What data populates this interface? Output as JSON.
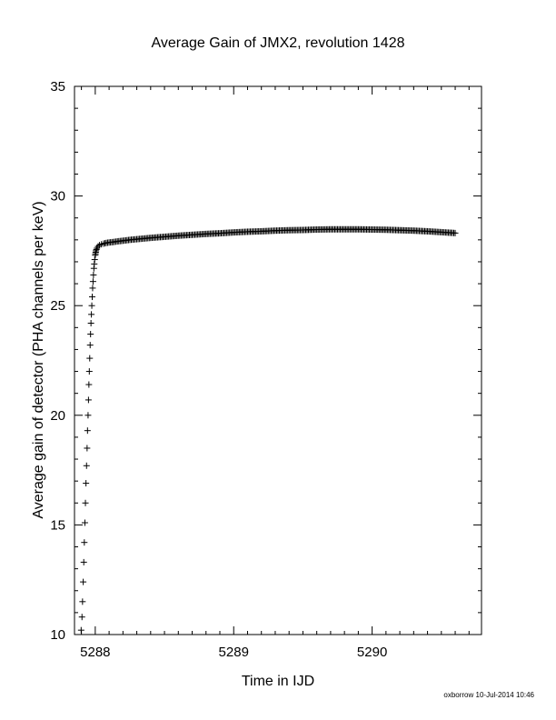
{
  "chart_data": {
    "type": "scatter",
    "title": "Average Gain of JMX2, revolution 1428",
    "xlabel": "Time in IJD",
    "ylabel": "Average gain of detector (PHA channels per keV)",
    "xlim": [
      5287.85,
      5290.79
    ],
    "ylim": [
      10,
      35
    ],
    "xticks": [
      5288,
      5289,
      5290
    ],
    "yticks": [
      10,
      15,
      20,
      25,
      30,
      35
    ],
    "marker": "+",
    "series": [
      {
        "x": [
          5287.898,
          5287.904,
          5287.908,
          5287.913,
          5287.917,
          5287.921,
          5287.925,
          5287.929,
          5287.933,
          5287.937,
          5287.941,
          5287.944,
          5287.948,
          5287.951,
          5287.954,
          5287.957,
          5287.96,
          5287.963,
          5287.966,
          5287.969,
          5287.972,
          5287.975,
          5287.978,
          5287.981,
          5287.984,
          5287.987,
          5287.99,
          5287.993,
          5287.996,
          5288.0,
          5288.005,
          5288.012,
          5288.02,
          5288.03,
          5288.045,
          5288.06,
          5288.08,
          5288.1,
          5288.13,
          5288.16,
          5288.2,
          5288.25,
          5288.3,
          5288.4,
          5288.5,
          5288.6,
          5288.7,
          5288.8,
          5288.9,
          5289.0,
          5289.1,
          5289.2,
          5289.3,
          5289.4,
          5289.5,
          5289.6,
          5289.7,
          5289.8,
          5289.9,
          5290.0,
          5290.1,
          5290.2,
          5290.3,
          5290.4,
          5290.5,
          5290.6
        ],
        "y": [
          10.2,
          10.8,
          11.5,
          12.4,
          13.3,
          14.2,
          15.1,
          16.0,
          16.9,
          17.7,
          18.5,
          19.3,
          20.0,
          20.7,
          21.4,
          22.0,
          22.6,
          23.2,
          23.7,
          24.2,
          24.6,
          25.0,
          25.4,
          25.8,
          26.1,
          26.4,
          26.7,
          26.9,
          27.1,
          27.3,
          27.5,
          27.62,
          27.7,
          27.76,
          27.8,
          27.83,
          27.86,
          27.88,
          27.9,
          27.93,
          27.96,
          28.0,
          28.03,
          28.09,
          28.14,
          28.19,
          28.23,
          28.27,
          28.3,
          28.34,
          28.37,
          28.39,
          28.42,
          28.44,
          28.45,
          28.47,
          28.48,
          28.48,
          28.48,
          28.47,
          28.46,
          28.44,
          28.42,
          28.39,
          28.35,
          28.31
        ]
      }
    ]
  },
  "footer": {
    "stamp": "oxborrow 10-Jul-2014 10:46"
  }
}
